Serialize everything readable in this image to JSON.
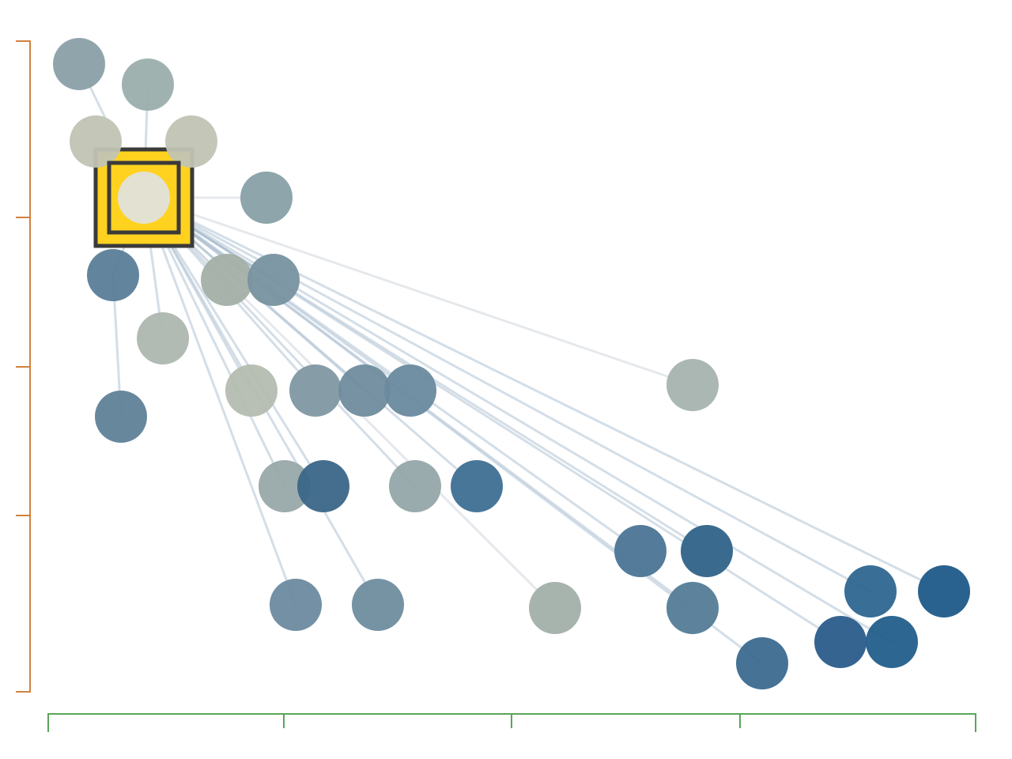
{
  "graph": {
    "colors": {
      "background": "#ffffff",
      "edge": "#9fb6c9",
      "edge_faint": "#cfd6dc",
      "selection_fill": "#ffd21f",
      "selection_stroke": "#3a3a3a",
      "x_axis": "#5aa55a",
      "y_axis": "#d2813f"
    },
    "selected_node": "n0",
    "nodes": [
      {
        "id": "n0",
        "color": "#e2e2db"
      },
      {
        "id": "n1",
        "color": "#8aa0a6"
      },
      {
        "id": "n2",
        "color": "#9aaeac"
      },
      {
        "id": "n3",
        "color": "#c1c4b4"
      },
      {
        "id": "n4",
        "color": "#c1c4b4"
      },
      {
        "id": "n5",
        "color": "#87a0a6"
      },
      {
        "id": "n6",
        "color": "#5a7d98"
      },
      {
        "id": "n7",
        "color": "#a3b0a6"
      },
      {
        "id": "n8",
        "color": "#7892a0"
      },
      {
        "id": "n9",
        "color": "#adb7b0"
      },
      {
        "id": "n10",
        "color": "#5f8198"
      },
      {
        "id": "n11",
        "color": "#b4bcb0"
      },
      {
        "id": "n12",
        "color": "#7f98a2"
      },
      {
        "id": "n13",
        "color": "#6f8c9e"
      },
      {
        "id": "n14",
        "color": "#6a8a9f"
      },
      {
        "id": "n15",
        "color": "#a6b3ae"
      },
      {
        "id": "n16",
        "color": "#98a8a8"
      },
      {
        "id": "n17",
        "color": "#3b6688"
      },
      {
        "id": "n18",
        "color": "#93a6a8"
      },
      {
        "id": "n19",
        "color": "#3e6f94"
      },
      {
        "id": "n20",
        "color": "#4b7595"
      },
      {
        "id": "n21",
        "color": "#2f6388"
      },
      {
        "id": "n22",
        "color": "#6b8aa0"
      },
      {
        "id": "n23",
        "color": "#6f8d9f"
      },
      {
        "id": "n24",
        "color": "#a2b0aa"
      },
      {
        "id": "n25",
        "color": "#537c96"
      },
      {
        "id": "n26",
        "color": "#3b6a8f"
      },
      {
        "id": "n27",
        "color": "#2e6690"
      },
      {
        "id": "n28",
        "color": "#1d5a88"
      },
      {
        "id": "n29",
        "color": "#2b5c8b"
      },
      {
        "id": "n30",
        "color": "#225e8a"
      }
    ],
    "edges": [
      [
        "n0",
        "n1"
      ],
      [
        "n0",
        "n2"
      ],
      [
        "n0",
        "n3"
      ],
      [
        "n0",
        "n4"
      ],
      [
        "n0",
        "n5"
      ],
      [
        "n0",
        "n6"
      ],
      [
        "n0",
        "n7"
      ],
      [
        "n0",
        "n8"
      ],
      [
        "n0",
        "n9"
      ],
      [
        "n0",
        "n11"
      ],
      [
        "n0",
        "n12"
      ],
      [
        "n0",
        "n13"
      ],
      [
        "n0",
        "n14"
      ],
      [
        "n0",
        "n15"
      ],
      [
        "n0",
        "n16"
      ],
      [
        "n0",
        "n17"
      ],
      [
        "n0",
        "n18"
      ],
      [
        "n0",
        "n19"
      ],
      [
        "n0",
        "n20"
      ],
      [
        "n0",
        "n21"
      ],
      [
        "n0",
        "n22"
      ],
      [
        "n0",
        "n23"
      ],
      [
        "n0",
        "n24"
      ],
      [
        "n0",
        "n25"
      ],
      [
        "n0",
        "n26"
      ],
      [
        "n0",
        "n27"
      ],
      [
        "n0",
        "n28"
      ],
      [
        "n0",
        "n29"
      ],
      [
        "n0",
        "n30"
      ],
      [
        "n6",
        "n10"
      ]
    ],
    "faint_edges": [
      [
        "n0",
        "n15"
      ],
      [
        "n0",
        "n24"
      ],
      [
        "n0",
        "n5"
      ]
    ]
  }
}
